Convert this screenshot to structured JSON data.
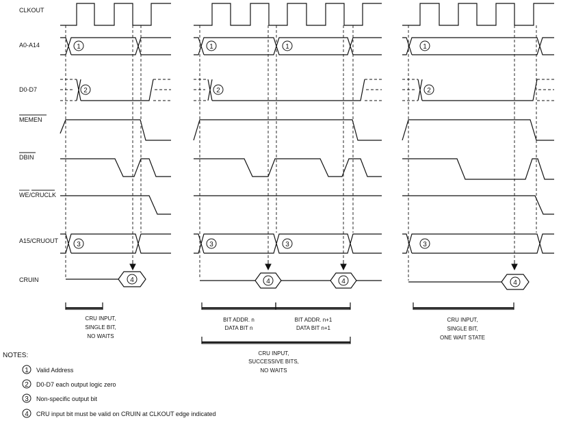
{
  "signals": [
    "CLKOUT",
    "A0-A14",
    "D0-D7",
    "MEMEN",
    "DBIN",
    "WE/CRUCLK",
    "A15/CRUOUT",
    "CRUIN"
  ],
  "markers": [
    "1",
    "2",
    "3",
    "4"
  ],
  "captions": {
    "d1": [
      "CRU INPUT,",
      "SINGLE BIT,",
      "NO WAITS"
    ],
    "d2a": [
      "BIT ADDR. n",
      "DATA BIT n"
    ],
    "d2b": [
      "BIT ADDR. n+1",
      "DATA BIT n+1"
    ],
    "d2": [
      "CRU INPUT,",
      "SUCCESSIVE BITS,",
      "NO WAITS"
    ],
    "d3": [
      "CRU INPUT,",
      "SINGLE BIT,",
      "ONE WAIT STATE"
    ]
  },
  "notes": {
    "title": "NOTES:",
    "items": [
      {
        "marker": "1",
        "text": "Valid Address"
      },
      {
        "marker": "2",
        "text": "D0-D7 each output logic zero"
      },
      {
        "marker": "3",
        "text": "Non-specific output bit"
      },
      {
        "marker": "4",
        "text": "CRU input bit must be valid on CRUIN at CLKOUT edge indicated"
      }
    ]
  }
}
